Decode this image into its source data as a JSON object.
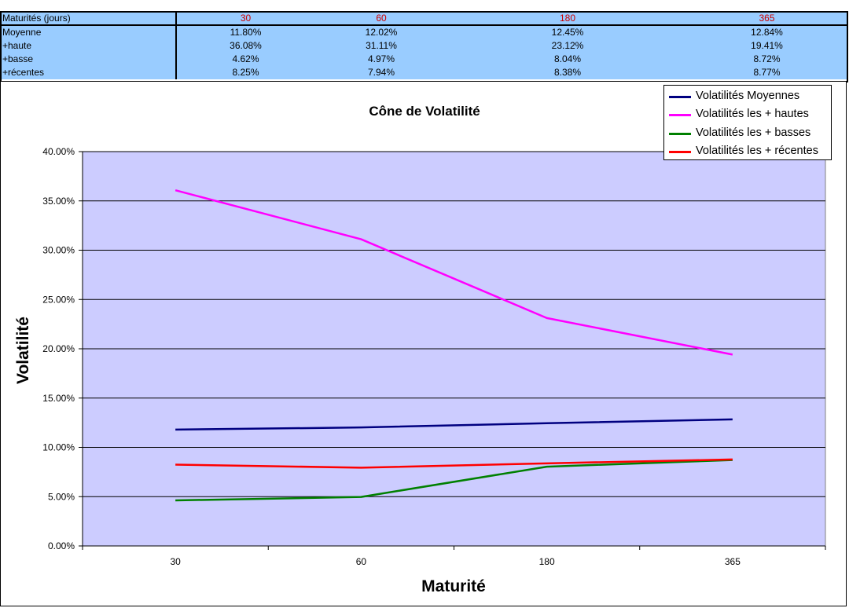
{
  "table": {
    "header_label": "Maturités (jours)",
    "maturities": [
      "30",
      "60",
      "180",
      "365"
    ],
    "rows": [
      {
        "label": "Moyenne",
        "cells": [
          "11.80%",
          "12.02%",
          "12.45%",
          "12.84%"
        ]
      },
      {
        "label": "+haute",
        "cells": [
          "36.08%",
          "31.11%",
          "23.12%",
          "19.41%"
        ]
      },
      {
        "label": "+basse",
        "cells": [
          "4.62%",
          "4.97%",
          "8.04%",
          "8.72%"
        ]
      },
      {
        "label": "+récentes",
        "cells": [
          "8.25%",
          "7.94%",
          "8.38%",
          "8.77%"
        ]
      }
    ]
  },
  "colors": {
    "table_background": "#99ccff",
    "header_value_text": "#cc0000",
    "plot_area": "#ccccff"
  },
  "chart_data": {
    "type": "line",
    "title": "Cône de Volatilité",
    "xlabel": "Maturité",
    "ylabel": "Volatilité",
    "categories": [
      "30",
      "60",
      "180",
      "365"
    ],
    "ylim": [
      0,
      0.4
    ],
    "y_ticks": [
      0,
      0.05,
      0.1,
      0.15,
      0.2,
      0.25,
      0.3,
      0.35,
      0.4
    ],
    "y_tick_labels": [
      "0.00%",
      "5.00%",
      "10.00%",
      "15.00%",
      "20.00%",
      "25.00%",
      "30.00%",
      "35.00%",
      "40.00%"
    ],
    "grid": "horizontal",
    "legend_position": "top-right",
    "series": [
      {
        "name": "Volatilités Moyennes",
        "color": "#000080",
        "values": [
          0.118,
          0.1202,
          0.1245,
          0.1284
        ]
      },
      {
        "name": "Volatilités les + hautes",
        "color": "#ff00ff",
        "values": [
          0.3608,
          0.3111,
          0.2312,
          0.1941
        ]
      },
      {
        "name": "Volatilités les + basses",
        "color": "#008000",
        "values": [
          0.0462,
          0.0497,
          0.0804,
          0.0872
        ]
      },
      {
        "name": "Volatilités les + récentes",
        "color": "#ff0000",
        "values": [
          0.0825,
          0.0794,
          0.0838,
          0.0877
        ]
      }
    ]
  }
}
